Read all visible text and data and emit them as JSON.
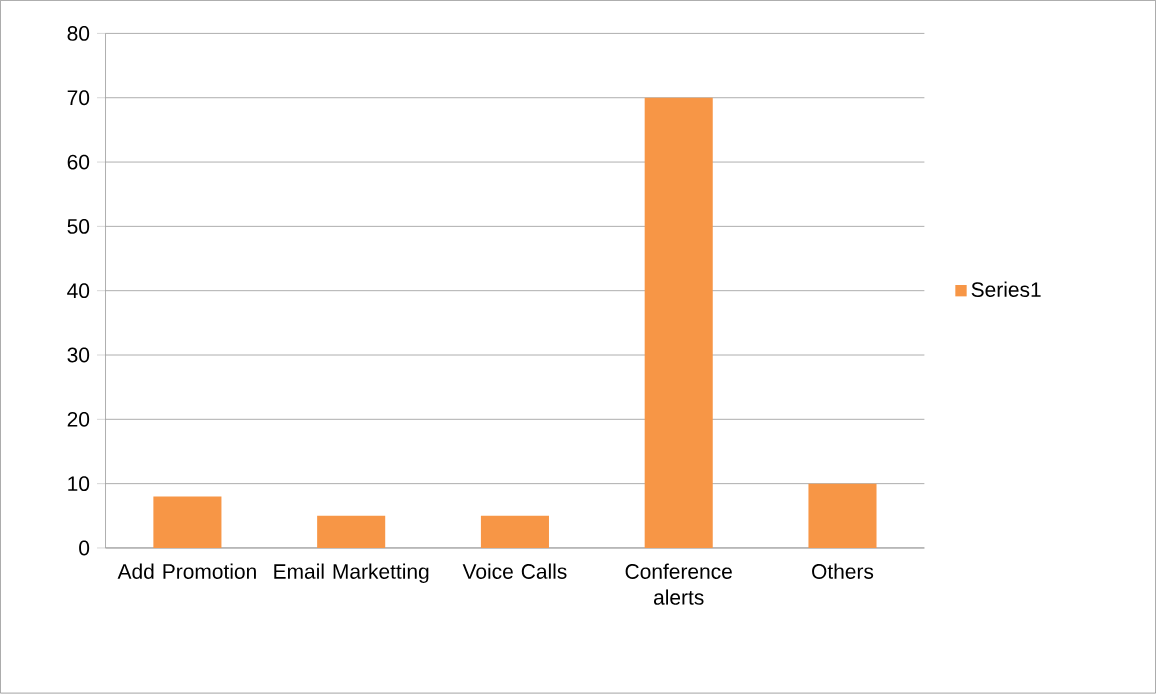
{
  "chart_data": {
    "type": "bar",
    "categories": [
      "Add Promotion",
      "Email Marketting",
      "Voice Calls",
      "Conference alerts",
      "Others"
    ],
    "series": [
      {
        "name": "Series1",
        "color": "#f79646",
        "values": [
          8,
          5,
          5,
          70,
          10
        ]
      }
    ],
    "ylim": [
      0,
      80
    ],
    "yticks": [
      0,
      10,
      20,
      30,
      40,
      50,
      60,
      70,
      80
    ],
    "grid": "y",
    "legend": "right"
  }
}
